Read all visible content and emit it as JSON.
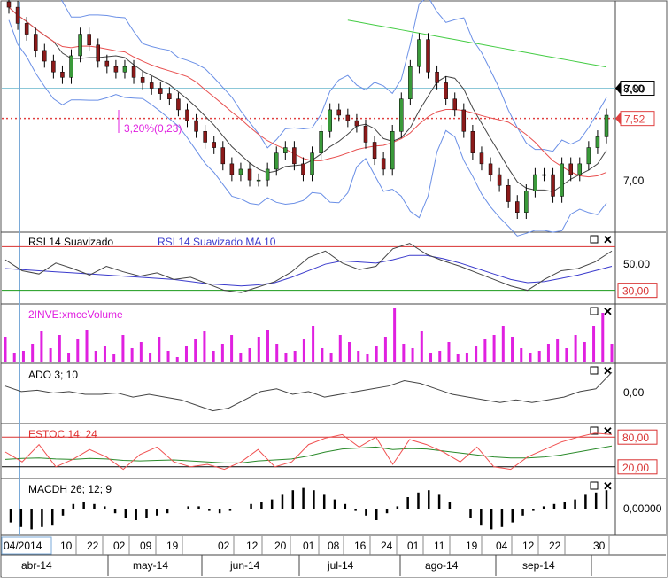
{
  "chart_data": [
    {
      "type": "candlestick",
      "panel": "price",
      "y_ticks": [
        "8,00",
        "7,00"
      ],
      "ylim": [
        6.5,
        8.6
      ],
      "overlays": [
        "Bollinger bands",
        "moving average (gray)",
        "moving average (red)",
        "moving average (green)"
      ],
      "price_labels": [
        {
          "value": 7.8,
          "text": "7,80"
        },
        {
          "value": 7.52,
          "text": "7,52"
        }
      ],
      "annotation": "3,20%(0,23)",
      "approx_closes": [
        8.55,
        8.4,
        8.3,
        8.15,
        8.05,
        7.95,
        7.9,
        8.1,
        8.3,
        8.2,
        8.05,
        8.0,
        7.95,
        8.0,
        7.9,
        7.85,
        7.8,
        7.75,
        7.7,
        7.6,
        7.5,
        7.4,
        7.3,
        7.25,
        7.1,
        7.0,
        7.05,
        6.95,
        6.95,
        7.05,
        7.2,
        7.25,
        7.1,
        7.0,
        7.2,
        7.4,
        7.6,
        7.55,
        7.5,
        7.45,
        7.3,
        7.15,
        7.05,
        7.4,
        7.7,
        8.0,
        8.25,
        7.95,
        7.85,
        7.7,
        7.6,
        7.4,
        7.2,
        7.1,
        7.0,
        6.9,
        6.75,
        6.65,
        6.85,
        7.0,
        7.0,
        6.8,
        7.1,
        7.0,
        7.1,
        7.25,
        7.35,
        7.55
      ]
    },
    {
      "type": "line",
      "panel": "rsi",
      "legend": [
        {
          "name": "RSI 14 Suavizado",
          "color": "#000000"
        },
        {
          "name": "RSI 14 Suavizado MA 10",
          "color": "#3a3acc"
        }
      ],
      "y_ticks": [
        "50,00"
      ],
      "levels": [
        {
          "value": 70,
          "color": "#d83030"
        },
        {
          "value": 30,
          "color": "#1a9a1a",
          "text": "30,00"
        }
      ],
      "ylim": [
        20,
        80
      ],
      "series": [
        {
          "name": "RSI 14 Suavizado",
          "values": [
            58,
            48,
            45,
            55,
            50,
            44,
            52,
            47,
            43,
            46,
            40,
            42,
            36,
            30,
            28,
            33,
            38,
            47,
            60,
            66,
            55,
            49,
            52,
            68,
            73,
            63,
            57,
            52,
            46,
            40,
            34,
            30,
            40,
            48,
            50,
            56,
            66
          ]
        },
        {
          "name": "RSI 14 Suavizado MA 10",
          "values": [
            50,
            49,
            48,
            47,
            46,
            45,
            44,
            43,
            42,
            41,
            40,
            38,
            36,
            35,
            34,
            35,
            37,
            42,
            48,
            54,
            57,
            56,
            55,
            58,
            62,
            62,
            59,
            55,
            50,
            45,
            40,
            37,
            38,
            41,
            44,
            48,
            52
          ]
        }
      ]
    },
    {
      "type": "bar",
      "panel": "volume",
      "legend": [
        {
          "name": "2INVE:xmceVolume",
          "color": "#e020e0"
        }
      ],
      "values": [
        28,
        10,
        12,
        20,
        35,
        15,
        30,
        10,
        25,
        36,
        12,
        18,
        8,
        30,
        15,
        22,
        10,
        28,
        12,
        5,
        18,
        25,
        35,
        12,
        20,
        30,
        10,
        15,
        28,
        36,
        20,
        10,
        12,
        25,
        40,
        15,
        10,
        30,
        22,
        12,
        8,
        18,
        28,
        60,
        20,
        15,
        35,
        10,
        12,
        22,
        8,
        10,
        18,
        25,
        30,
        40,
        28,
        15,
        10,
        12,
        20,
        25,
        15,
        30,
        22,
        40,
        55,
        20
      ]
    },
    {
      "type": "line",
      "panel": "ado",
      "legend": [
        {
          "name": "ADO 3; 10",
          "color": "#000000"
        }
      ],
      "y_ticks": [
        "0,00"
      ],
      "ylim": [
        -1,
        1
      ],
      "values": [
        0.3,
        0.1,
        0.15,
        0.05,
        0.1,
        0.0,
        0.0,
        0.05,
        -0.1,
        0.0,
        -0.1,
        -0.2,
        -0.4,
        -0.6,
        -0.5,
        -0.2,
        0.1,
        0.2,
        0.0,
        0.1,
        -0.1,
        0.0,
        0.1,
        0.2,
        0.3,
        0.5,
        0.4,
        0.2,
        0.0,
        -0.1,
        -0.2,
        -0.3,
        -0.2,
        -0.3,
        -0.2,
        -0.1,
        0.1,
        0.2,
        0.8
      ]
    },
    {
      "type": "line",
      "panel": "stochastic",
      "legend": [
        {
          "name": "ESTOC 14; 24",
          "color": "#e03030"
        }
      ],
      "y_ticks": [
        "80,00",
        "20,00"
      ],
      "levels": [
        {
          "value": 80,
          "color": "#d83030"
        },
        {
          "value": 20,
          "color": "#000000"
        }
      ],
      "ylim": [
        0,
        100
      ],
      "series": [
        {
          "name": "%K",
          "values": [
            50,
            30,
            65,
            20,
            35,
            55,
            40,
            15,
            45,
            60,
            30,
            20,
            25,
            15,
            30,
            55,
            20,
            30,
            65,
            78,
            85,
            60,
            80,
            25,
            75,
            65,
            50,
            30,
            60,
            20,
            15,
            40,
            55,
            70,
            80,
            88,
            85
          ]
        },
        {
          "name": "%D",
          "values": [
            35,
            37,
            38,
            36,
            35,
            37,
            36,
            33,
            32,
            33,
            34,
            32,
            30,
            28,
            28,
            32,
            34,
            36,
            42,
            50,
            56,
            58,
            60,
            55,
            57,
            56,
            52,
            48,
            44,
            40,
            38,
            38,
            40,
            44,
            50,
            56,
            62
          ]
        }
      ]
    },
    {
      "type": "bar",
      "panel": "macd_histogram",
      "legend": [
        {
          "name": "MACDH 26; 12; 9",
          "color": "#000000"
        }
      ],
      "y_ticks": [
        "0,00000"
      ],
      "ylim": [
        -1,
        1
      ],
      "values": [
        -0.6,
        -0.8,
        -0.9,
        -0.8,
        -0.7,
        -0.3,
        0.2,
        0.3,
        0.2,
        0.1,
        -0.2,
        -0.4,
        -0.5,
        -0.4,
        -0.3,
        -0.2,
        0.0,
        0.1,
        0.1,
        -0.1,
        -0.2,
        -0.1,
        0.0,
        0.2,
        0.3,
        0.4,
        0.6,
        0.8,
        0.9,
        0.8,
        0.6,
        0.4,
        0.2,
        -0.1,
        -0.3,
        -0.5,
        -0.2,
        0.1,
        0.5,
        0.7,
        0.8,
        0.6,
        0.3,
        0.0,
        -0.4,
        -0.7,
        -0.9,
        -0.8,
        -0.6,
        -0.3,
        -0.1,
        0.1,
        0.2,
        0.3,
        0.4,
        0.6,
        0.7,
        0.8
      ]
    }
  ],
  "x_axis": {
    "day_labels": [
      "04/2014",
      "10",
      "22",
      "02",
      "09",
      "19",
      "02",
      "12",
      "20",
      "01",
      "08",
      "16",
      "24",
      "01",
      "11",
      "19",
      "04",
      "12",
      "22",
      "30"
    ],
    "month_labels": [
      "abr-14",
      "may-14",
      "jun-14",
      "jul-14",
      "ago-14",
      "sep-14"
    ]
  },
  "colors": {
    "candle_up": "#3a9a3a",
    "candle_down": "#8b1a1a",
    "bollinger": "#6a8fe6",
    "ma_gray": "#444444",
    "ma_red": "#e85050",
    "ma_green": "#44cc44",
    "price_marker": "#e04040",
    "cursor_line": "#7aaad8"
  },
  "icons": [
    "maximize-icon",
    "close-icon",
    "dropdown-arrow-icon"
  ]
}
